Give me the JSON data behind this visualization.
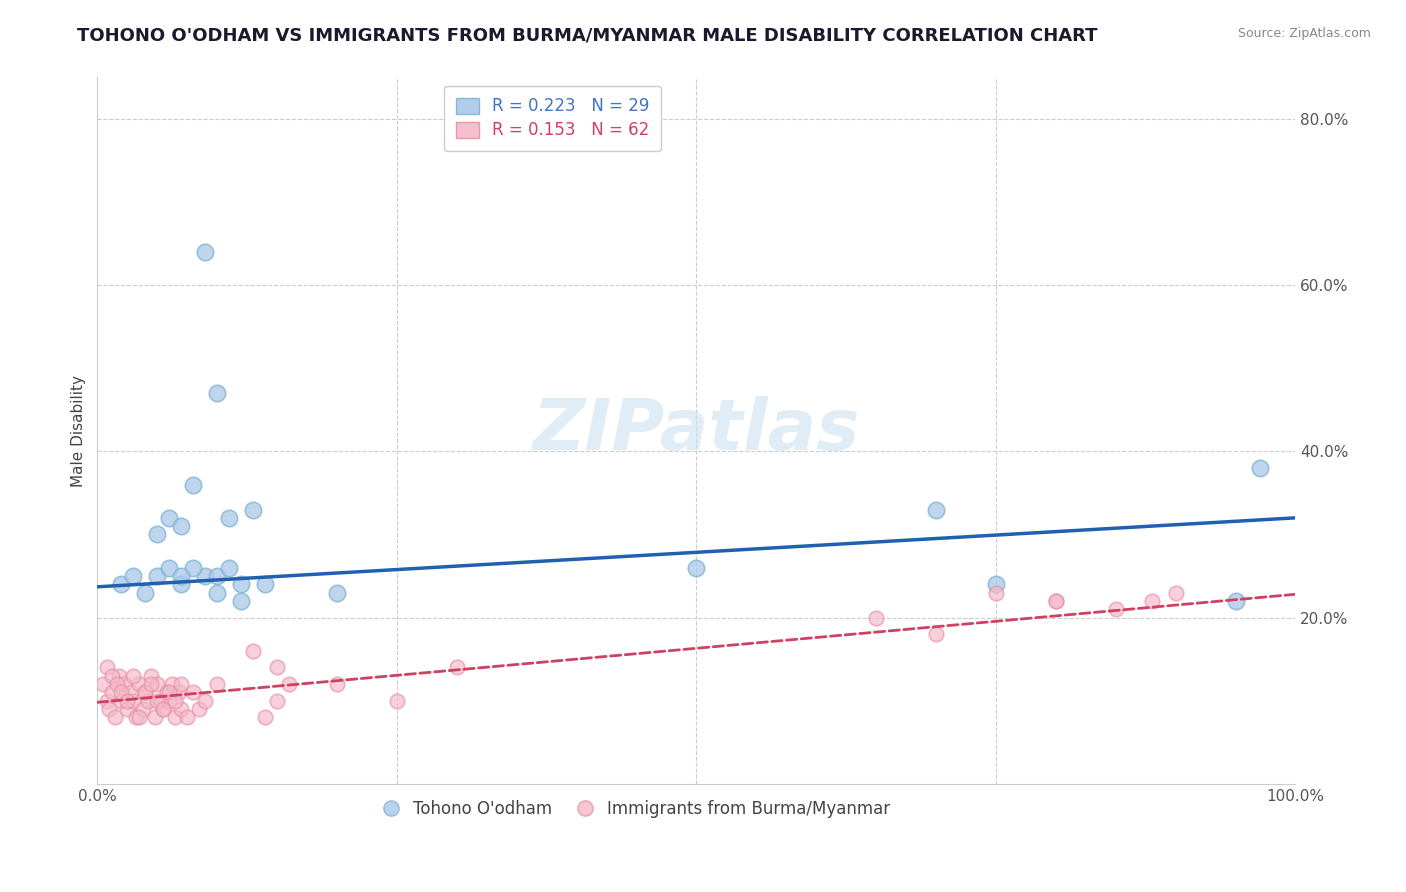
{
  "title": "TOHONO O'ODHAM VS IMMIGRANTS FROM BURMA/MYANMAR MALE DISABILITY CORRELATION CHART",
  "source": "Source: ZipAtlas.com",
  "ylabel": "Male Disability",
  "xlim": [
    0,
    1.0
  ],
  "ylim": [
    0,
    0.85
  ],
  "xticks": [
    0.0,
    0.25,
    0.5,
    0.75,
    1.0
  ],
  "xticklabels": [
    "0.0%",
    "",
    "",
    "",
    "100.0%"
  ],
  "yticks": [
    0.0,
    0.2,
    0.4,
    0.6,
    0.8
  ],
  "yticklabels": [
    "",
    "20.0%",
    "40.0%",
    "60.0%",
    "80.0%"
  ],
  "legend_r1": "R = 0.223",
  "legend_n1": "N = 29",
  "legend_r2": "R = 0.153",
  "legend_n2": "N = 62",
  "watermark": "ZIPatlas",
  "blue_color": "#a8c8e8",
  "blue_edge": "#7fb3d3",
  "pink_color": "#f4b8c8",
  "pink_edge": "#e890a8",
  "line_blue": "#2060b0",
  "line_pink": "#d04060",
  "background": "#ffffff",
  "grid_color": "#cccccc",
  "tohono_x": [
    0.02,
    0.03,
    0.04,
    0.05,
    0.06,
    0.07,
    0.09,
    0.1,
    0.12,
    0.14,
    0.09,
    0.08,
    0.11,
    0.1,
    0.13,
    0.05,
    0.06,
    0.07,
    0.08,
    0.1,
    0.11,
    0.12,
    0.07,
    0.2,
    0.5,
    0.7,
    0.75,
    0.95,
    0.97
  ],
  "tohono_y": [
    0.24,
    0.25,
    0.23,
    0.25,
    0.26,
    0.24,
    0.25,
    0.23,
    0.22,
    0.24,
    0.64,
    0.36,
    0.32,
    0.47,
    0.33,
    0.3,
    0.32,
    0.31,
    0.26,
    0.25,
    0.26,
    0.24,
    0.25,
    0.23,
    0.26,
    0.33,
    0.24,
    0.22,
    0.38
  ],
  "burma_x": [
    0.005,
    0.008,
    0.01,
    0.012,
    0.015,
    0.018,
    0.02,
    0.022,
    0.025,
    0.028,
    0.03,
    0.032,
    0.035,
    0.038,
    0.04,
    0.042,
    0.045,
    0.048,
    0.05,
    0.052,
    0.055,
    0.058,
    0.06,
    0.062,
    0.065,
    0.068,
    0.07,
    0.008,
    0.012,
    0.016,
    0.02,
    0.025,
    0.03,
    0.035,
    0.04,
    0.045,
    0.05,
    0.055,
    0.06,
    0.065,
    0.07,
    0.075,
    0.08,
    0.085,
    0.09,
    0.1,
    0.15,
    0.2,
    0.25,
    0.3,
    0.65,
    0.7,
    0.75,
    0.8,
    0.85,
    0.8,
    0.88,
    0.9,
    0.13,
    0.14,
    0.15,
    0.16
  ],
  "burma_y": [
    0.12,
    0.1,
    0.09,
    0.11,
    0.08,
    0.13,
    0.1,
    0.12,
    0.09,
    0.11,
    0.1,
    0.08,
    0.12,
    0.09,
    0.11,
    0.1,
    0.13,
    0.08,
    0.12,
    0.1,
    0.09,
    0.11,
    0.1,
    0.12,
    0.08,
    0.11,
    0.09,
    0.14,
    0.13,
    0.12,
    0.11,
    0.1,
    0.13,
    0.08,
    0.11,
    0.12,
    0.1,
    0.09,
    0.11,
    0.1,
    0.12,
    0.08,
    0.11,
    0.09,
    0.1,
    0.12,
    0.14,
    0.12,
    0.1,
    0.14,
    0.2,
    0.18,
    0.23,
    0.22,
    0.21,
    0.22,
    0.22,
    0.23,
    0.16,
    0.08,
    0.1,
    0.12
  ],
  "blue_line_x0": 0.0,
  "blue_line_y0": 0.237,
  "blue_line_x1": 1.0,
  "blue_line_y1": 0.32,
  "pink_line_x0": 0.0,
  "pink_line_y0": 0.098,
  "pink_line_x1": 1.0,
  "pink_line_y1": 0.228
}
